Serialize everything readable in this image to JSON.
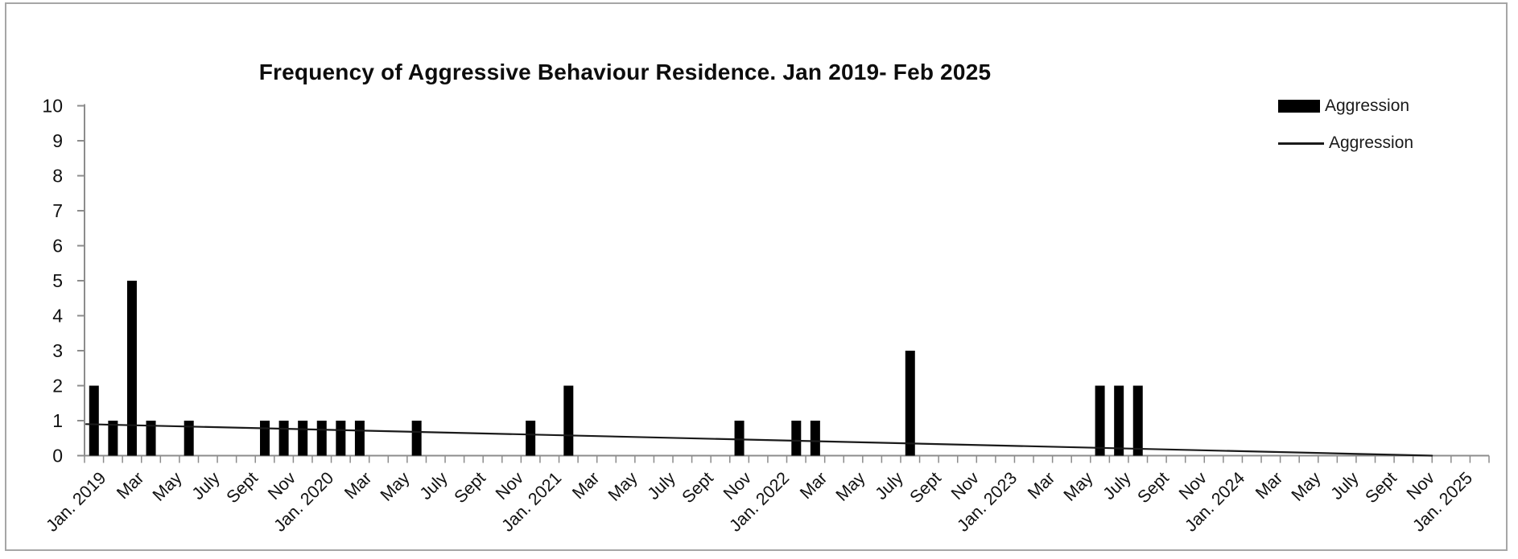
{
  "window": {
    "background": "#ffffff",
    "frame_border_color": "#a6a6a6"
  },
  "title": "Frequency of Aggressive Behaviour Residence. Jan 2019- Feb 2025",
  "legend": {
    "position": "top-right",
    "entries": [
      {
        "label": "Aggression",
        "swatch": "bar",
        "color": "#000000"
      },
      {
        "label": "Aggression",
        "swatch": "line",
        "color": "#1a1a1a"
      }
    ]
  },
  "colors": {
    "bar": "#000000",
    "trendline": "#1a1a1a",
    "axis": "#8c8c8c",
    "text": "#111111"
  },
  "chart_data": {
    "type": "bar",
    "title": "Frequency of Aggressive Behaviour Residence. Jan 2019- Feb 2025",
    "x": [
      "Jan 2019",
      "Feb 2019",
      "Mar 2019",
      "Apr 2019",
      "May 2019",
      "Jun 2019",
      "Jul 2019",
      "Aug 2019",
      "Sep 2019",
      "Oct 2019",
      "Nov 2019",
      "Dec 2019",
      "Jan 2020",
      "Feb 2020",
      "Mar 2020",
      "Apr 2020",
      "May 2020",
      "Jun 2020",
      "Jul 2020",
      "Aug 2020",
      "Sep 2020",
      "Oct 2020",
      "Nov 2020",
      "Dec 2020",
      "Jan 2021",
      "Feb 2021",
      "Mar 2021",
      "Apr 2021",
      "May 2021",
      "Jun 2021",
      "Jul 2021",
      "Aug 2021",
      "Sep 2021",
      "Oct 2021",
      "Nov 2021",
      "Dec 2021",
      "Jan 2022",
      "Feb 2022",
      "Mar 2022",
      "Apr 2022",
      "May 2022",
      "Jun 2022",
      "Jul 2022",
      "Aug 2022",
      "Sep 2022",
      "Oct 2022",
      "Nov 2022",
      "Dec 2022",
      "Jan 2023",
      "Feb 2023",
      "Mar 2023",
      "Apr 2023",
      "May 2023",
      "Jun 2023",
      "Jul 2023",
      "Aug 2023",
      "Sep 2023",
      "Oct 2023",
      "Nov 2023",
      "Dec 2023",
      "Jan 2024",
      "Feb 2024",
      "Mar 2024",
      "Apr 2024",
      "May 2024",
      "Jun 2024",
      "Jul 2024",
      "Aug 2024",
      "Sep 2024",
      "Oct 2024",
      "Nov 2024",
      "Dec 2024",
      "Jan 2025",
      "Feb 2025"
    ],
    "series": [
      {
        "name": "Aggression",
        "type": "bar",
        "color": "#000000",
        "values": [
          2,
          1,
          5,
          1,
          0,
          1,
          0,
          0,
          0,
          1,
          1,
          1,
          1,
          1,
          1,
          0,
          0,
          1,
          0,
          0,
          0,
          0,
          0,
          1,
          0,
          2,
          0,
          0,
          0,
          0,
          0,
          0,
          0,
          0,
          1,
          0,
          0,
          1,
          1,
          0,
          0,
          0,
          0,
          3,
          0,
          0,
          0,
          0,
          0,
          0,
          0,
          0,
          0,
          2,
          2,
          2,
          0,
          0,
          0,
          0,
          0,
          0,
          0,
          0,
          0,
          0,
          0,
          0,
          0,
          0,
          0,
          0,
          0,
          0
        ]
      },
      {
        "name": "Aggression",
        "type": "linear_trendline",
        "color": "#1a1a1a",
        "intercept": 0.908,
        "slope_per_month": -0.0127,
        "start_value": 0.9,
        "zero_cross_month": "Nov 2024"
      }
    ],
    "ylim": [
      0,
      10
    ],
    "y_ticks": [
      0,
      1,
      2,
      3,
      4,
      5,
      6,
      7,
      8,
      9,
      10
    ],
    "x_tick_labels": [
      "Jan. 2019",
      "Mar",
      "May",
      "July",
      "Sept",
      "Nov",
      "Jan. 2020",
      "Mar",
      "May",
      "July",
      "Sept",
      "Nov",
      "Jan. 2021",
      "Mar",
      "May",
      "July",
      "Sept",
      "Nov",
      "Jan. 2022",
      "Mar",
      "May",
      "July",
      "Sept",
      "Nov",
      "Jan. 2023",
      "Mar",
      "May",
      "July",
      "Sept",
      "Nov",
      "Jan. 2024",
      "Mar",
      "May",
      "July",
      "Sept",
      "Nov",
      "Jan. 2025"
    ],
    "x_label_every_n_months": 2,
    "x_label_rotation_deg": 45,
    "grid": false,
    "legend_position": "top-right"
  }
}
